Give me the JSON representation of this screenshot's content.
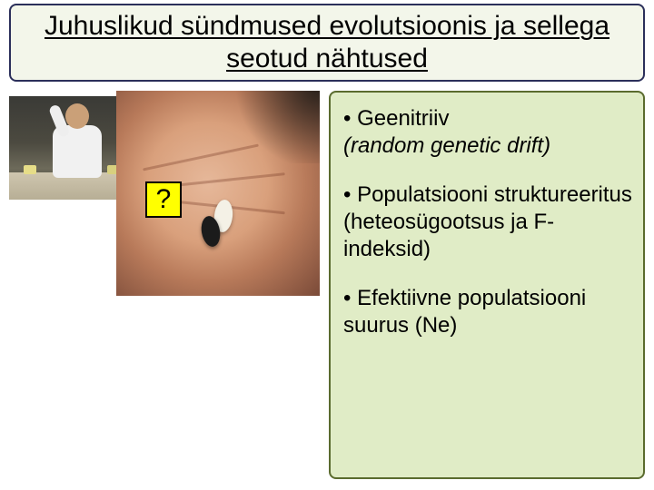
{
  "slide": {
    "title": "Juhuslikud sündmused evolutsioonis ja sellega seotud nähtused",
    "title_box": {
      "background_color": "#f3f6ea",
      "border_color": "#2b2f5a",
      "font_size": 30
    },
    "bullets": [
      {
        "prefix": "• ",
        "label": "Geenitriiv",
        "sub_italic": "(random genetic drift)"
      },
      {
        "prefix": "• ",
        "label": "Populatsiooni struktureeritus",
        "sub": "(heteosügootsus ja F-indeksid)"
      },
      {
        "prefix": "• ",
        "label": "Efektiivne populatsiooni suurus (Ne)"
      }
    ],
    "content_box": {
      "background_color": "#e0ecc6",
      "border_color": "#5a6b2e",
      "font_size": 24
    },
    "question_marker": {
      "text": "?",
      "background_color": "#ffff00",
      "border_color": "#000000",
      "font_size": 30
    },
    "images": {
      "left_photo": "scientist-in-lab-coat",
      "right_photo": "palm-with-two-beans"
    }
  }
}
